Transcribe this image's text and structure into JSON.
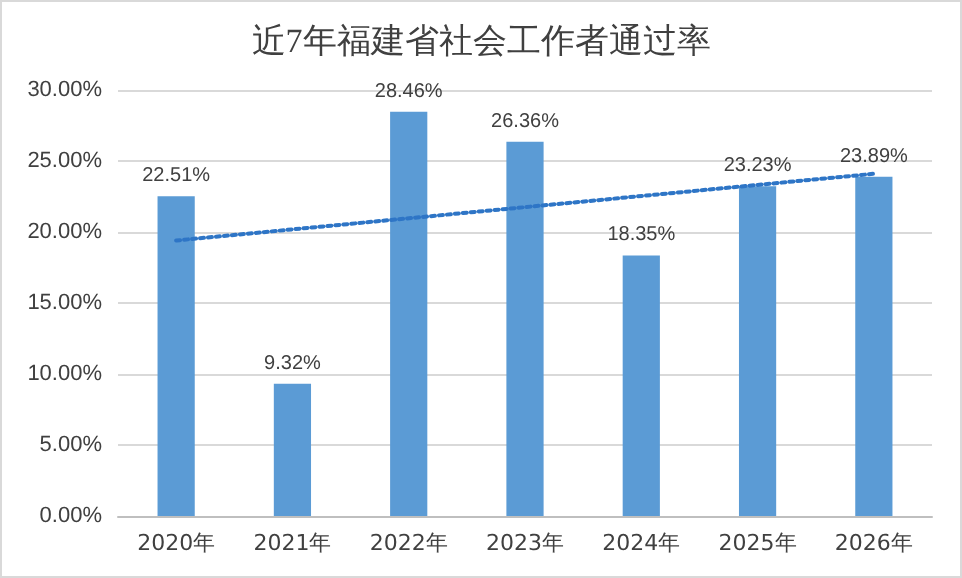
{
  "chart_data": {
    "type": "bar",
    "title": "近7年福建省社会工作者通过率",
    "categories": [
      "2020年",
      "2021年",
      "2022年",
      "2023年",
      "2024年",
      "2025年",
      "2026年"
    ],
    "series": [
      {
        "color": "#5b9bd5",
        "values": [
          22.51,
          9.32,
          28.46,
          26.36,
          18.35,
          23.23,
          23.89
        ],
        "value_labels": [
          "22.51%",
          "9.32%",
          "28.46%",
          "26.36%",
          "18.35%",
          "23.23%",
          "23.89%"
        ]
      },
      {
        "type": "line",
        "color": "#2e75c6",
        "x": [
          "2020年",
          "2026年"
        ],
        "values": [
          19.4,
          24.1
        ],
        "line_style": "dotted",
        "marker": "none"
      }
    ],
    "ylim": [
      0,
      30
    ],
    "yticks": [
      {
        "value": 0,
        "label": "0.00%"
      },
      {
        "value": 5,
        "label": "5.00%"
      },
      {
        "value": 10,
        "label": "10.00%"
      },
      {
        "value": 15,
        "label": "15.00%"
      },
      {
        "value": 20,
        "label": "20.00%"
      },
      {
        "value": 25,
        "label": "25.00%"
      },
      {
        "value": 30,
        "label": "30.00%"
      }
    ],
    "grid": "y"
  }
}
